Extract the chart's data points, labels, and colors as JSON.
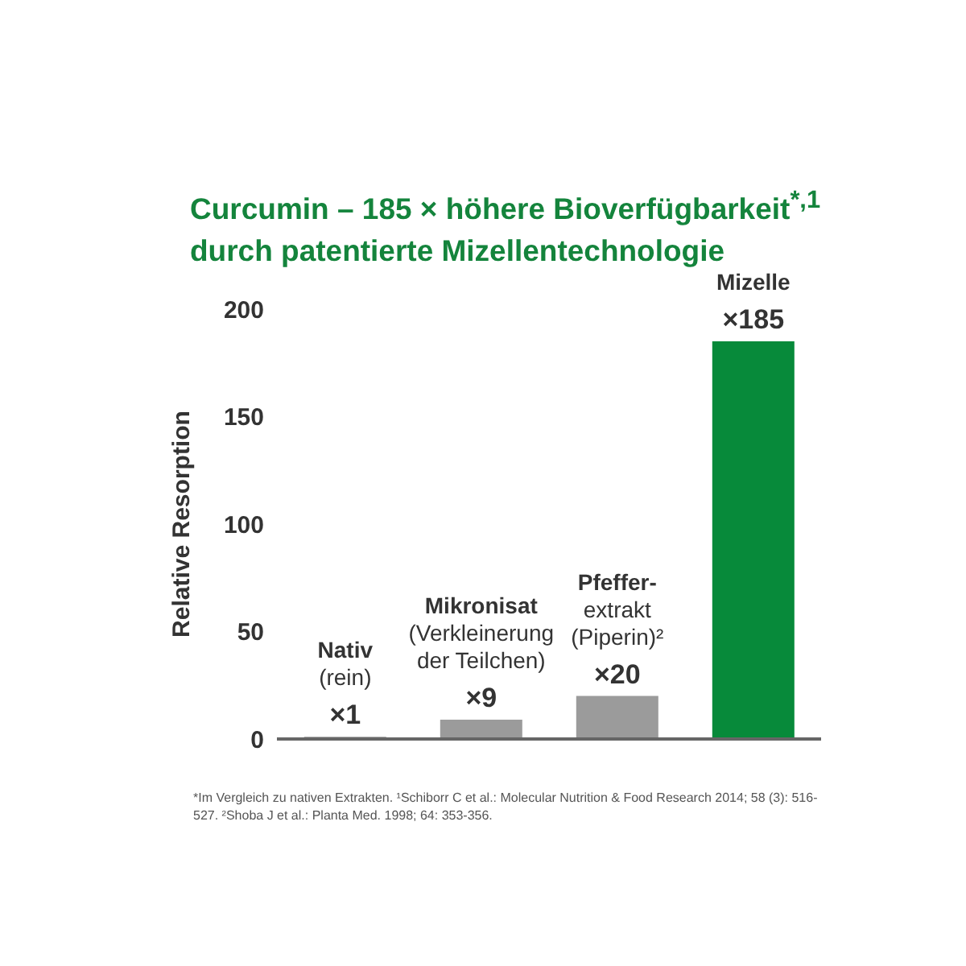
{
  "chart_data": {
    "type": "bar",
    "title": "Curcumin – 185 × höhere Bioverfügbarkeit$^{*,1}$\ndurch patentierte Mizellentechnologie",
    "ylabel": "Relative Resorption",
    "categories": [
      "Nativ\n(rein)",
      "Mikronisat\n(Verkleinerung\nder Teilchen)",
      "Pfeffer-\nextrakt\n(Piperin)²",
      "Mizelle"
    ],
    "values": [
      1,
      9,
      20,
      185
    ],
    "value_labels": [
      "×1",
      "×9",
      "×20",
      "×185"
    ],
    "colors": [
      "#9b9b9b",
      "#9b9b9b",
      "#9b9b9b",
      "#078a3a"
    ],
    "ylim": [
      0,
      200
    ],
    "yticks": [
      0,
      50,
      100,
      150,
      200
    ],
    "grid": false,
    "legend": false,
    "tick_labels": "y",
    "annotations": [
      "*Im Vergleich zu nativen Extrakten. ¹Schiborr C et al.: Molecular Nutrition & Food Research 2014; 58 (3): 516-527. ²Shoba J et al.: Planta Med. 1998; 64: 353-356."
    ]
  }
}
